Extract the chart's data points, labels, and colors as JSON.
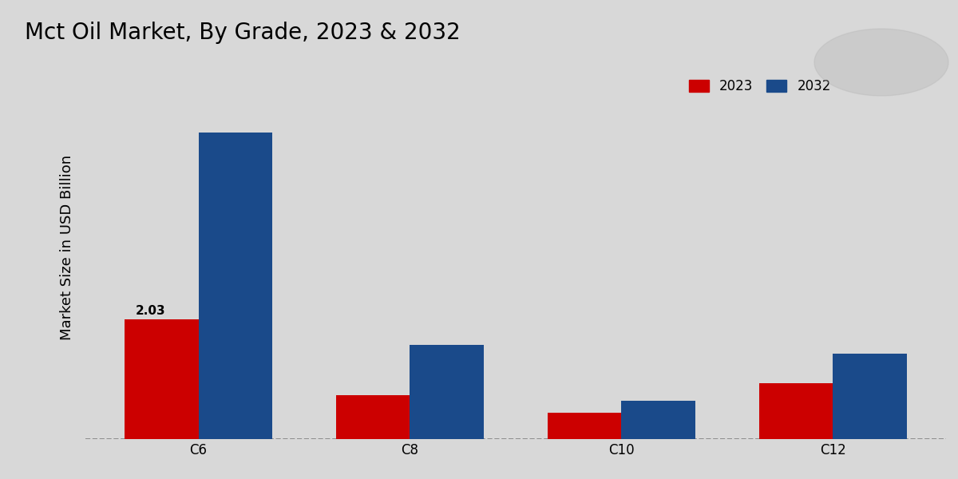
{
  "title": "Mct Oil Market, By Grade, 2023 & 2032",
  "ylabel": "Market Size in USD Billion",
  "categories": [
    "C6",
    "C8",
    "C10",
    "C12"
  ],
  "series": {
    "2023": [
      2.03,
      0.75,
      0.45,
      0.95
    ],
    "2032": [
      5.2,
      1.6,
      0.65,
      1.45
    ]
  },
  "colors": {
    "2023": "#cc0000",
    "2032": "#1a4a8a"
  },
  "bar_width": 0.35,
  "annotation_2023_C6": "2.03",
  "background_color": "#d8d8d8",
  "ylim": [
    0,
    6.5
  ],
  "title_fontsize": 20,
  "axis_label_fontsize": 13,
  "tick_fontsize": 12,
  "legend_fontsize": 12
}
